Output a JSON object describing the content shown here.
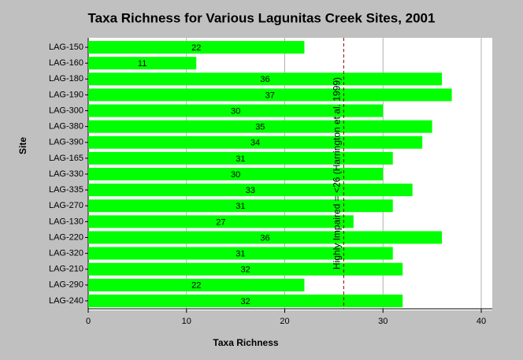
{
  "chart_data": {
    "type": "bar",
    "orientation": "horizontal",
    "title": "Taxa Richness for Various Lagunitas Creek Sites, 2001",
    "x_label": "Taxa Richness",
    "y_label": "Site",
    "categories": [
      "LAG-150",
      "LAG-160",
      "LAG-180",
      "LAG-190",
      "LAG-300",
      "LAG-380",
      "LAG-390",
      "LAG-165",
      "LAG-330",
      "LAG-335",
      "LAG-270",
      "LAG-130",
      "LAG-220",
      "LAG-320",
      "LAG-210",
      "LAG-290",
      "LAG-240"
    ],
    "values": [
      22,
      11,
      36,
      37,
      30,
      35,
      34,
      31,
      30,
      33,
      31,
      27,
      36,
      31,
      32,
      22,
      32
    ],
    "color": "#00ff00",
    "xlim": [
      0,
      40
    ],
    "xticks": [
      0,
      10,
      20,
      30,
      40
    ],
    "grid": true,
    "reference_line": {
      "value": 26,
      "label": "Highly Impaired = <26 (Harrington et al. 1999)",
      "color": "#800000"
    }
  }
}
